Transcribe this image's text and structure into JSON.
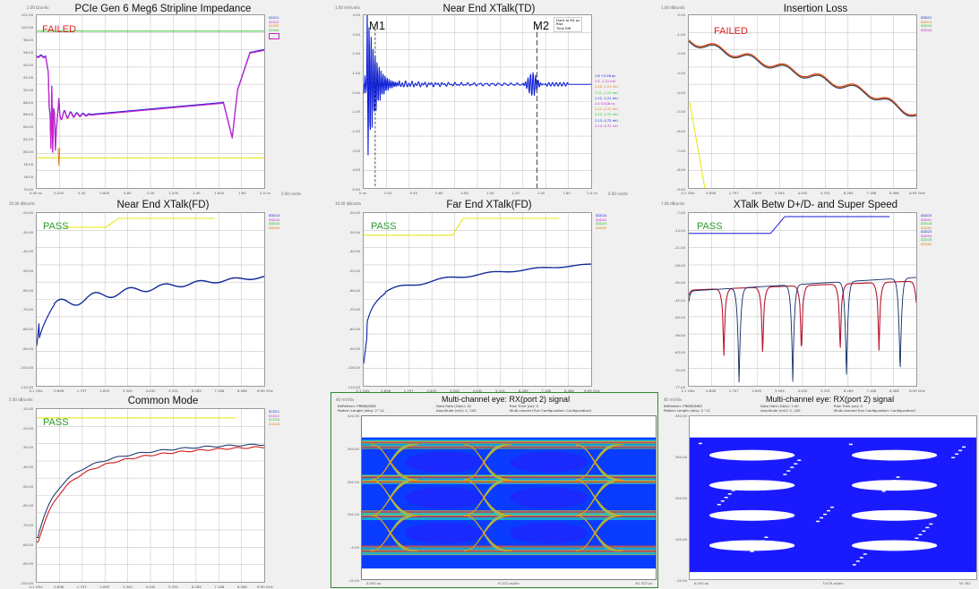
{
  "colors": {
    "fail": "#e02020",
    "pass": "#2a9a2a",
    "limit_yellow": "#e6e600",
    "limit_green": "#22bb22",
    "trace_blue": "#1020d8",
    "trace_navy": "#0b2a66",
    "trace_magenta": "#cc22cc",
    "trace_orange": "#e07a10",
    "trace_red": "#d01818",
    "trace_crimson": "#b8142e",
    "eye_blue": "#1a1aff"
  },
  "panels": [
    {
      "id": "impedance",
      "title": "PCIe Gen 6 Meg6 Stripline Impedance",
      "status": "FAILED",
      "status_kind": "fail",
      "scale_label": "2.00 Ω/units",
      "x_unit": "0.00 ns/div",
      "legend": [
        "S0011",
        "S0022",
        "S0033",
        "S0044"
      ],
      "legend_colors": [
        "#1020d8",
        "#cc22cc",
        "#e07a10",
        "#22bb22"
      ],
      "yticks": [
        "102.00",
        "100.00",
        "98.00",
        "96.00",
        "94.00",
        "92.00",
        "90.00",
        "88.00",
        "86.00",
        "84.00",
        "82.00",
        "80.00",
        "78.00",
        "76.00",
        "74.00"
      ],
      "xticks": [
        "0.00 ns",
        "0.200",
        "0.40",
        "0.600",
        "0.80",
        "1.00",
        "1.200",
        "1.40",
        "1.600",
        "1.80",
        "2.0 ns"
      ]
    },
    {
      "id": "next_td",
      "title": "Near End XTalk(TD)",
      "scale_label": "1.00 mV/units",
      "x_unit": "0.00 ns/div",
      "markers": [
        "M1",
        "M2"
      ],
      "marker_box": [
        "Flank to M1 ps",
        "Rise",
        "Time Diff"
      ],
      "marker_table": [
        "1.8   +5.28 ps",
        "1.9   -1.21 mU",
        "1.10  -1.21 mU",
        "1.11  -1.21 mU",
        "1.12  -1.21 mU",
        "2.0   0.628 ns",
        "2.11  -0.72 mU",
        "2.12  -0.72 mU",
        "2.13  -0.72 mU",
        "2.14  -0.72 mU"
      ],
      "yticks": [
        "4.00",
        "3.00",
        "2.00",
        "1.00",
        "0.00",
        "-1.00",
        "-2.00",
        "-3.00",
        "-4.00",
        "-5.00"
      ],
      "xticks": [
        "0 ns",
        "0.20",
        "0.40",
        "0.60",
        "0.80",
        "1.00",
        "1.20",
        "1.40",
        "1.60",
        "2.0 ns"
      ]
    },
    {
      "id": "insertion_loss",
      "title": "Insertion Loss",
      "status": "FAILED",
      "status_kind": "fail",
      "scale_label": "1.00 dB/units",
      "legend": [
        "SDD21",
        "SDD12",
        "SDD34",
        "SDD43"
      ],
      "legend_colors": [
        "#1020d8",
        "#e07a10",
        "#22bb22",
        "#cc22cc"
      ],
      "yticks": [
        "0.00",
        "-1.00",
        "-2.00",
        "-3.00",
        "-4.00",
        "-5.00",
        "-6.00",
        "-7.00",
        "-8.00",
        "-9.00"
      ],
      "xticks": [
        "0.1 GHz",
        "0.898",
        "1.797",
        "2.695",
        "3.594",
        "4.492",
        "5.391",
        "6.289",
        "7.188",
        "8.086",
        "8.99 GHz"
      ]
    },
    {
      "id": "next_fd",
      "title": "Near End XTalk(FD)",
      "status": "PASS",
      "status_kind": "pass",
      "scale_label": "10.00 dB/units",
      "legend": [
        "SDD13",
        "SDD31",
        "SDD24",
        "SDD42"
      ],
      "legend_colors": [
        "#1020d8",
        "#cc22cc",
        "#22bb22",
        "#e07a10"
      ],
      "yticks": [
        "-20.00",
        "-30.00",
        "-40.00",
        "-50.00",
        "-60.00",
        "-70.00",
        "-80.00",
        "-90.00",
        "-100.00",
        "-110.00"
      ],
      "xticks": [
        "0.1 GHz",
        "0.898",
        "1.797",
        "2.695",
        "3.594",
        "4.492",
        "5.391",
        "6.289",
        "7.188",
        "8.086",
        "8.99 GHz"
      ]
    },
    {
      "id": "fext_fd",
      "title": "Far End XTalk(FD)",
      "status": "PASS",
      "status_kind": "pass",
      "scale_label": "10.00 dB/units",
      "legend": [
        "SDD14",
        "SDD41",
        "SDD23",
        "SDD32"
      ],
      "legend_colors": [
        "#1020d8",
        "#cc22cc",
        "#22bb22",
        "#e07a10"
      ],
      "yticks": [
        "-20.00",
        "-30.00",
        "-40.00",
        "-50.00",
        "-60.00",
        "-70.00",
        "-80.00",
        "-90.00",
        "-100.00",
        "-110.00"
      ],
      "xticks": [
        "0.1 GHz",
        "0.898",
        "1.797",
        "2.695",
        "3.594",
        "4.492",
        "5.391",
        "6.289",
        "7.188",
        "8.086",
        "8.99 GHz"
      ]
    },
    {
      "id": "xtalk_dd_ss",
      "title": "XTalk Betw D+/D- and Super Speed",
      "status": "PASS",
      "status_kind": "pass",
      "scale_label": "7.00 dB/units",
      "legend": [
        "SDD15",
        "SDD51",
        "SDD16",
        "SDD61",
        "SDD25",
        "SDD52",
        "SDD26",
        "SDD62"
      ],
      "legend_colors": [
        "#1020d8",
        "#cc22cc",
        "#22bb22",
        "#e07a10",
        "#1020d8",
        "#cc22cc",
        "#22bb22",
        "#e07a10"
      ],
      "yticks": [
        "-7.00",
        "-14.00",
        "-21.00",
        "-28.00",
        "-35.00",
        "-42.00",
        "-49.00",
        "-56.00",
        "-63.00",
        "-70.00",
        "-77.00"
      ],
      "xticks": [
        "0.1 GHz",
        "0.898",
        "1.797",
        "2.695",
        "3.594",
        "4.492",
        "5.391",
        "6.289",
        "7.188",
        "8.086",
        "8.99 GHz"
      ]
    },
    {
      "id": "common_mode",
      "title": "Common Mode",
      "status": "PASS",
      "status_kind": "pass",
      "scale_label": "5.00 dB/units",
      "legend": [
        "SCD21",
        "SCD12",
        "SCD34",
        "SCD43"
      ],
      "legend_colors": [
        "#1020d8",
        "#cc22cc",
        "#22bb22",
        "#e07a10"
      ],
      "yticks": [
        "-10.00",
        "-20.00",
        "-30.00",
        "-40.00",
        "-50.00",
        "-60.00",
        "-70.00",
        "-80.00",
        "-90.00",
        "-100.00"
      ],
      "xticks": [
        "0.1 GHz",
        "0.898",
        "1.797",
        "2.695",
        "3.594",
        "4.492",
        "5.391",
        "6.289",
        "7.188",
        "8.086",
        "8.99 GHz"
      ]
    },
    {
      "id": "eye_color",
      "title": "Multi-channel eye: RX(port 2) signal",
      "scale_label": "40 mV/div",
      "header_left": [
        "BitPattern:  PRBS8/NRZ",
        "Pattern Length (bits): 2^11"
      ],
      "header_mid": [
        "Data Rate (Gb/s):  32",
        "Amplitude (mV):  0, 200"
      ],
      "header_right": [
        "Rise Time (ps):  0",
        "Multi-channel Eye Configuration:  Configuration1"
      ],
      "yticks": [
        "410.00",
        "350.00",
        "250.00",
        "150.00",
        "-0.00",
        "-10.00"
      ],
      "xticks": [
        "0.000 ps",
        "6.152 ps/div",
        "61.523 ps"
      ]
    },
    {
      "id": "eye_mono",
      "title": "Multi-channel eye: RX(port 2) signal",
      "scale_label": "40 mV/div",
      "header_left": [
        "BitPattern:  PRBS8/NRZ",
        "Pattern Length (bits): 2^11"
      ],
      "header_mid": [
        "Data Rate (Gb/s):  1.00",
        "Amplitude (mV):  0, 200"
      ],
      "header_right": [
        "Rise Time (ps):  0",
        "Multi-channel Eye Configuration:  Configuration1"
      ],
      "yticks": [
        "430.00",
        "350.00",
        "250.00",
        "150.00",
        "-10.00"
      ],
      "xticks": [
        "0.000 ps",
        "3.076 ps/div",
        "30.762"
      ]
    }
  ]
}
